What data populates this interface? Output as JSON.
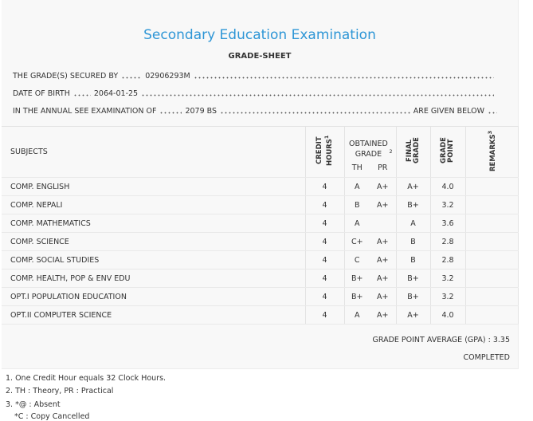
{
  "header": {
    "title": "Secondary Education Examination",
    "subtitle": "GRADE-SHEET"
  },
  "info": [
    {
      "label": "THE GRADE(S) SECURED BY",
      "value": "02906293M"
    },
    {
      "label": "DATE OF BIRTH",
      "value": "2064-01-25"
    },
    {
      "label": "IN THE ANNUAL SEE EXAMINATION OF",
      "value": "2079 BS",
      "suffix": "ARE GIVEN BELOW"
    }
  ],
  "table": {
    "columns": {
      "subjects": "SUBJECTS",
      "credit": {
        "text": "CREDIT HOURS",
        "note": "1"
      },
      "obtained": {
        "text": "OBTAINED GRADE",
        "note": "2"
      },
      "th": "TH",
      "pr": "PR",
      "final": "FINAL GRADE",
      "point": "GRADE POINT",
      "remarks": {
        "text": "REMARKS",
        "note": "3"
      }
    },
    "rows": [
      [
        "COMP. ENGLISH",
        "4",
        "A",
        "A+",
        "A+",
        "4.0"
      ],
      [
        "COMP. NEPALI",
        "4",
        "B",
        "A+",
        "B+",
        "3.2"
      ],
      [
        "COMP. MATHEMATICS",
        "4",
        "A",
        null,
        "A",
        "3.6"
      ],
      [
        "COMP. SCIENCE",
        "4",
        "C+",
        "A+",
        "B",
        "2.8"
      ],
      [
        "COMP. SOCIAL STUDIES",
        "4",
        "C",
        "A+",
        "B",
        "2.8"
      ],
      [
        "COMP. HEALTH, POP & ENV EDU",
        "4",
        "B+",
        "A+",
        "B+",
        "3.2"
      ],
      [
        "OPT.I POPULATION EDUCATION",
        "4",
        "B+",
        "A+",
        "B+",
        "3.2"
      ],
      [
        "OPT.II COMPUTER SCIENCE",
        "4",
        "A",
        "A+",
        "A+",
        "4.0"
      ]
    ]
  },
  "gpa": {
    "label": "GRADE POINT AVERAGE (GPA) :",
    "value": "3.35"
  },
  "status": "COMPLETED",
  "notes": [
    "1. One Credit Hour equals 32 Clock Hours.",
    "2. TH : Theory, PR : Practical",
    "3. *@ : Absent",
    "*C : Copy Cancelled"
  ]
}
